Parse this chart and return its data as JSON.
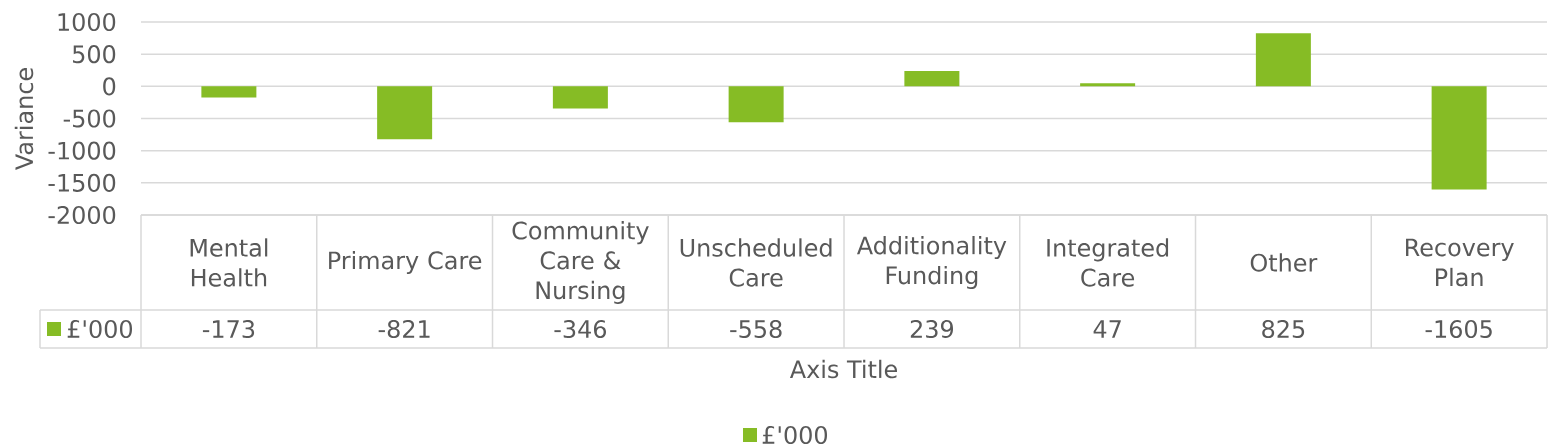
{
  "chart_data": {
    "type": "bar",
    "xlabel": "Axis Title",
    "ylabel": "Variance",
    "categories": [
      "Mental Health",
      "Primary Care",
      "Community Care & Nursing",
      "Unscheduled Care",
      "Additionality Funding",
      "Integrated Care",
      "Other",
      "Recovery Plan"
    ],
    "series": [
      {
        "name": "£'000",
        "color": "#86bc25",
        "values": [
          -173,
          -821,
          -346,
          -558,
          239,
          47,
          825,
          -1605
        ]
      }
    ],
    "ylim": [
      -2000,
      1000
    ],
    "yticks": [
      -2000,
      -1500,
      -1000,
      -500,
      0,
      500,
      1000
    ],
    "grid": "y",
    "data_labels": true,
    "legend": "bottom"
  }
}
